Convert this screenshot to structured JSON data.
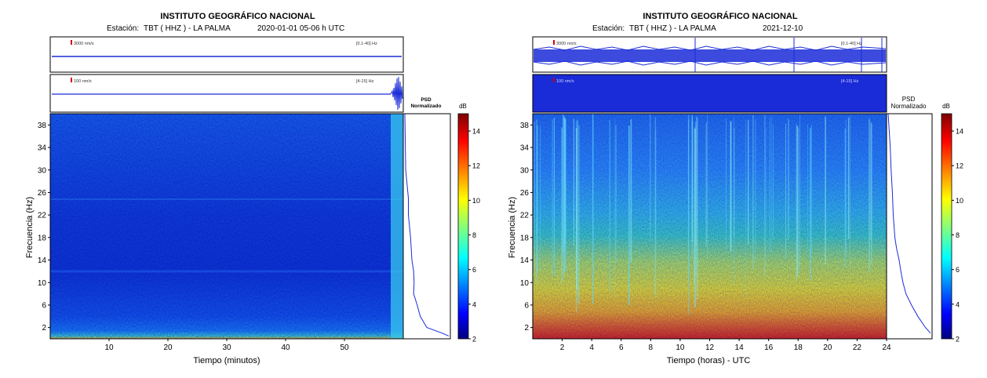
{
  "panels": [
    {
      "title": "INSTITUTO GEOGRÁFICO NACIONAL",
      "station_label": "Estación:",
      "station": "TBT ( HHZ ) - LA PALMA",
      "date": "2020-01-01  05-06 h UTC",
      "trace1": {
        "scale": "3000 nm/s",
        "band": "[0.1-40] Hz"
      },
      "trace2": {
        "scale": "100 nm/s",
        "band": "[4-15] Hz"
      },
      "psd_label_1": "PSD",
      "psd_label_2": "Normalizado",
      "colorbar_unit": "dB"
    },
    {
      "title": "INSTITUTO GEOGRÁFICO NACIONAL",
      "station_label": "Estación:",
      "station": "TBT ( HHZ ) - LA PALMA",
      "date": "2021-12-10",
      "trace1": {
        "scale": "3000 nm/s",
        "band": "[0.1-40] Hz"
      },
      "trace2": {
        "scale": "100 nm/s",
        "band": "[4-15] Hz"
      },
      "psd_label_1": "PSD",
      "psd_label_2": "Normalizado",
      "colorbar_unit": "dB"
    }
  ],
  "chart_data": [
    {
      "type": "heatmap",
      "title": "INSTITUTO GEOGRÁFICO NACIONAL",
      "xlabel": "Tiempo (minutos)",
      "ylabel": "Frecuencia (Hz)",
      "xlim": [
        0,
        60
      ],
      "ylim": [
        0,
        40
      ],
      "xticks": [
        10,
        20,
        30,
        40,
        50
      ],
      "yticks": [
        2,
        6,
        10,
        14,
        18,
        22,
        26,
        30,
        34,
        38
      ],
      "colorbar": {
        "label": "dB",
        "range": [
          2,
          15
        ],
        "ticks": [
          2,
          4,
          6,
          8,
          10,
          12,
          14
        ]
      },
      "psd_profile": {
        "freq_hz": [
          40,
          30,
          25,
          22,
          18,
          14,
          12,
          10,
          8,
          6,
          4,
          2,
          1,
          0.5
        ],
        "relative_power": [
          0.0,
          0.02,
          0.08,
          0.08,
          0.13,
          0.16,
          0.2,
          0.21,
          0.2,
          0.28,
          0.35,
          0.5,
          0.85,
          1.0
        ]
      }
    },
    {
      "type": "heatmap",
      "title": "INSTITUTO GEOGRÁFICO NACIONAL",
      "xlabel": "Tiempo (horas) - UTC",
      "ylabel": "Frecuencia (Hz)",
      "xlim": [
        0,
        24
      ],
      "ylim": [
        0,
        40
      ],
      "xticks": [
        2,
        4,
        6,
        8,
        10,
        12,
        14,
        16,
        18,
        20,
        22,
        24
      ],
      "yticks": [
        2,
        6,
        10,
        14,
        18,
        22,
        26,
        30,
        34,
        38
      ],
      "colorbar": {
        "label": "dB",
        "range": [
          2,
          15
        ],
        "ticks": [
          2,
          4,
          6,
          8,
          10,
          12,
          14
        ]
      },
      "psd_profile": {
        "freq_hz": [
          40,
          34,
          30,
          26,
          22,
          18,
          16,
          14,
          12,
          10,
          8,
          6,
          4,
          2,
          1
        ],
        "relative_power": [
          0.0,
          0.05,
          0.07,
          0.1,
          0.12,
          0.16,
          0.2,
          0.26,
          0.3,
          0.35,
          0.42,
          0.55,
          0.7,
          0.88,
          1.0
        ]
      }
    }
  ]
}
